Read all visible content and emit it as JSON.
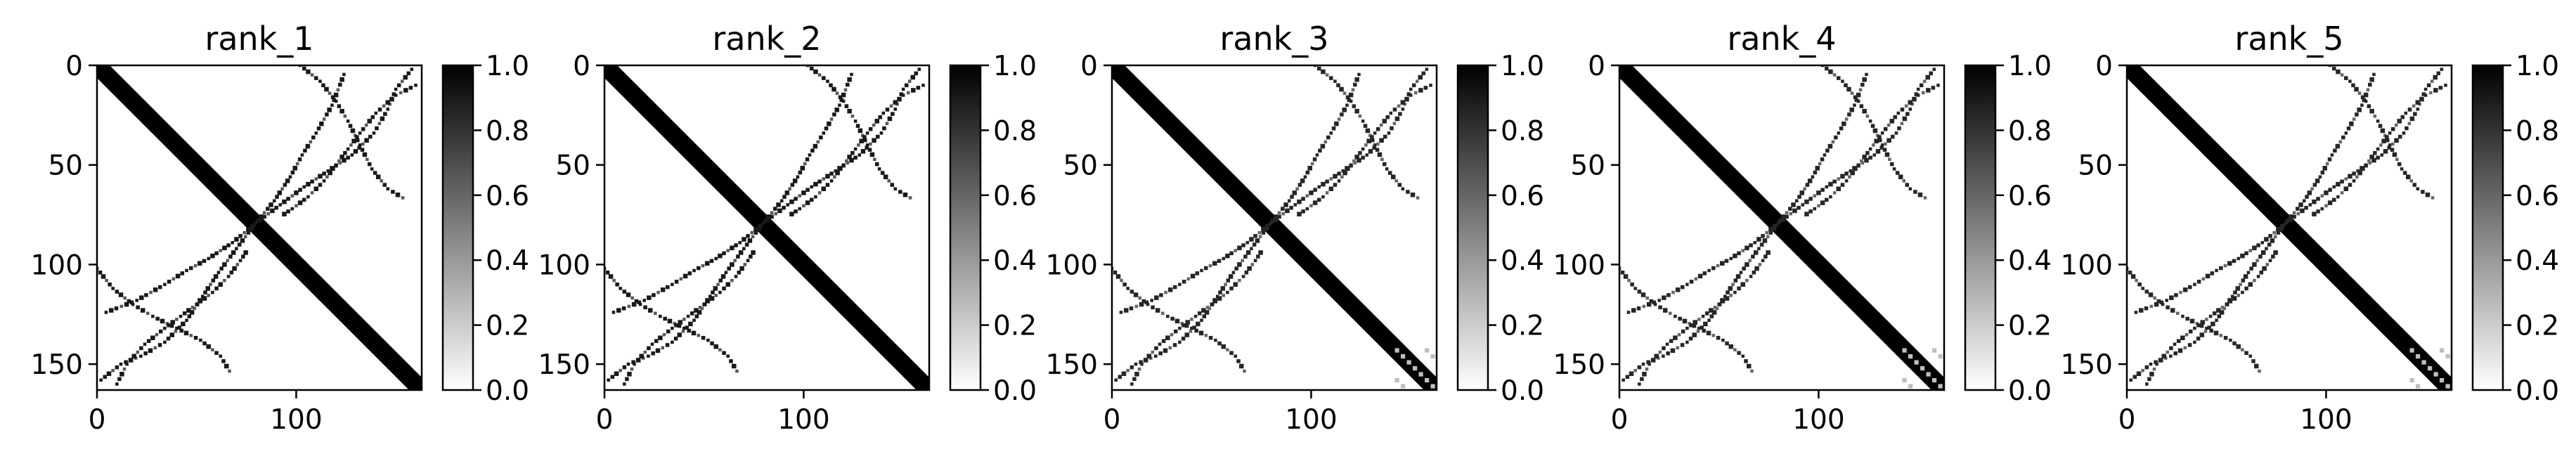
{
  "figure": {
    "background": "#ffffff"
  },
  "colormap": {
    "low": "#ffffff",
    "high": "#000000"
  },
  "chart_data": [
    {
      "type": "heatmap",
      "title": "rank_1",
      "x_ticks": [
        "0",
        "100"
      ],
      "y_ticks": [
        "0",
        "50",
        "100",
        "150"
      ],
      "colorbar_ticks": [
        "0.0",
        "0.2",
        "0.4",
        "0.6",
        "0.8",
        "1.0"
      ],
      "value_range": [
        0,
        1
      ],
      "matrix_size": 163,
      "xlim": [
        0,
        163
      ],
      "ylim": [
        163,
        0
      ],
      "features": [
        {
          "kind": "diagonal",
          "value": 1.0
        },
        {
          "kind": "contact_band",
          "points": [
            [
              102,
              0
            ],
            [
              112,
              8
            ],
            [
              120,
              18
            ],
            [
              126,
              28
            ],
            [
              132,
              40
            ],
            [
              138,
              52
            ],
            [
              146,
              62
            ],
            [
              156,
              68
            ]
          ],
          "value": 0.9
        },
        {
          "kind": "contact_band",
          "points": [
            [
              158,
              2
            ],
            [
              150,
              12
            ],
            [
              146,
              22
            ],
            [
              139,
              34
            ],
            [
              128,
              45
            ],
            [
              116,
              53
            ],
            [
              104,
              61
            ],
            [
              92,
              70
            ],
            [
              80,
              79
            ],
            [
              68,
              89
            ],
            [
              56,
              97
            ],
            [
              45,
              103
            ],
            [
              34,
              110
            ],
            [
              20,
              118
            ],
            [
              2,
              125
            ]
          ],
          "value": 0.9
        },
        {
          "kind": "contact_band",
          "points": [
            [
              10,
              160
            ],
            [
              15,
              150
            ],
            [
              24,
              140
            ],
            [
              34,
              132
            ],
            [
              42,
              126
            ],
            [
              50,
              120
            ],
            [
              58,
              114
            ],
            [
              66,
              106
            ],
            [
              72,
              98
            ],
            [
              76,
              92
            ]
          ],
          "value": 0.9
        }
      ]
    },
    {
      "type": "heatmap",
      "title": "rank_2",
      "x_ticks": [
        "0",
        "100"
      ],
      "y_ticks": [
        "0",
        "50",
        "100",
        "150"
      ],
      "colorbar_ticks": [
        "0.0",
        "0.2",
        "0.4",
        "0.6",
        "0.8",
        "1.0"
      ],
      "value_range": [
        0,
        1
      ],
      "matrix_size": 163,
      "xlim": [
        0,
        163
      ],
      "ylim": [
        163,
        0
      ],
      "features": [
        {
          "kind": "diagonal",
          "value": 1.0
        },
        {
          "kind": "contact_band",
          "points": [
            [
              102,
              0
            ],
            [
              112,
              8
            ],
            [
              120,
              18
            ],
            [
              126,
              28
            ],
            [
              132,
              40
            ],
            [
              138,
              52
            ],
            [
              146,
              62
            ],
            [
              156,
              68
            ]
          ],
          "value": 0.9
        },
        {
          "kind": "contact_band",
          "points": [
            [
              158,
              2
            ],
            [
              150,
              12
            ],
            [
              146,
              22
            ],
            [
              139,
              34
            ],
            [
              128,
              45
            ],
            [
              116,
              53
            ],
            [
              104,
              61
            ],
            [
              92,
              70
            ],
            [
              80,
              79
            ],
            [
              68,
              89
            ],
            [
              56,
              97
            ],
            [
              45,
              103
            ],
            [
              34,
              110
            ],
            [
              20,
              118
            ],
            [
              2,
              125
            ]
          ],
          "value": 0.9
        },
        {
          "kind": "contact_band",
          "points": [
            [
              10,
              160
            ],
            [
              15,
              150
            ],
            [
              24,
              140
            ],
            [
              34,
              132
            ],
            [
              42,
              126
            ],
            [
              50,
              120
            ],
            [
              58,
              114
            ],
            [
              66,
              106
            ],
            [
              72,
              98
            ],
            [
              76,
              92
            ]
          ],
          "value": 0.9
        }
      ]
    },
    {
      "type": "heatmap",
      "title": "rank_3",
      "x_ticks": [
        "0",
        "100"
      ],
      "y_ticks": [
        "0",
        "50",
        "100",
        "150"
      ],
      "colorbar_ticks": [
        "0.0",
        "0.2",
        "0.4",
        "0.6",
        "0.8",
        "1.0"
      ],
      "value_range": [
        0,
        1
      ],
      "matrix_size": 163,
      "xlim": [
        0,
        163
      ],
      "ylim": [
        163,
        0
      ],
      "features": [
        {
          "kind": "diagonal",
          "value": 1.0
        },
        {
          "kind": "contact_band",
          "points": [
            [
              102,
              0
            ],
            [
              112,
              8
            ],
            [
              120,
              18
            ],
            [
              126,
              28
            ],
            [
              132,
              40
            ],
            [
              138,
              52
            ],
            [
              146,
              62
            ],
            [
              156,
              68
            ]
          ],
          "value": 0.85
        },
        {
          "kind": "contact_band",
          "points": [
            [
              158,
              2
            ],
            [
              150,
              12
            ],
            [
              146,
              22
            ],
            [
              139,
              34
            ],
            [
              128,
              45
            ],
            [
              116,
              53
            ],
            [
              104,
              61
            ],
            [
              92,
              70
            ],
            [
              80,
              79
            ],
            [
              68,
              89
            ],
            [
              56,
              97
            ],
            [
              45,
              103
            ],
            [
              34,
              110
            ],
            [
              20,
              118
            ],
            [
              2,
              125
            ]
          ],
          "value": 0.85
        },
        {
          "kind": "contact_band",
          "points": [
            [
              10,
              160
            ],
            [
              15,
              150
            ],
            [
              24,
              140
            ],
            [
              34,
              132
            ],
            [
              42,
              126
            ],
            [
              50,
              120
            ],
            [
              58,
              114
            ],
            [
              66,
              106
            ],
            [
              72,
              98
            ],
            [
              76,
              92
            ]
          ],
          "value": 0.85
        },
        {
          "kind": "corner_block",
          "range": [
            142,
            163
          ],
          "value": 0.25
        }
      ]
    },
    {
      "type": "heatmap",
      "title": "rank_4",
      "x_ticks": [
        "0",
        "100"
      ],
      "y_ticks": [
        "0",
        "50",
        "100",
        "150"
      ],
      "colorbar_ticks": [
        "0.0",
        "0.2",
        "0.4",
        "0.6",
        "0.8",
        "1.0"
      ],
      "value_range": [
        0,
        1
      ],
      "matrix_size": 163,
      "xlim": [
        0,
        163
      ],
      "ylim": [
        163,
        0
      ],
      "features": [
        {
          "kind": "diagonal",
          "value": 1.0
        },
        {
          "kind": "contact_band",
          "points": [
            [
              102,
              0
            ],
            [
              112,
              8
            ],
            [
              120,
              18
            ],
            [
              126,
              28
            ],
            [
              132,
              40
            ],
            [
              138,
              52
            ],
            [
              146,
              62
            ],
            [
              156,
              68
            ]
          ],
          "value": 0.85
        },
        {
          "kind": "contact_band",
          "points": [
            [
              158,
              2
            ],
            [
              150,
              12
            ],
            [
              146,
              22
            ],
            [
              139,
              34
            ],
            [
              128,
              45
            ],
            [
              116,
              53
            ],
            [
              104,
              61
            ],
            [
              92,
              70
            ],
            [
              80,
              79
            ],
            [
              68,
              89
            ],
            [
              56,
              97
            ],
            [
              45,
              103
            ],
            [
              34,
              110
            ],
            [
              20,
              118
            ],
            [
              2,
              125
            ]
          ],
          "value": 0.85
        },
        {
          "kind": "contact_band",
          "points": [
            [
              10,
              160
            ],
            [
              15,
              150
            ],
            [
              24,
              140
            ],
            [
              34,
              132
            ],
            [
              42,
              126
            ],
            [
              50,
              120
            ],
            [
              58,
              114
            ],
            [
              66,
              106
            ],
            [
              72,
              98
            ],
            [
              76,
              92
            ]
          ],
          "value": 0.85
        },
        {
          "kind": "corner_block",
          "range": [
            142,
            163
          ],
          "value": 0.25
        }
      ]
    },
    {
      "type": "heatmap",
      "title": "rank_5",
      "x_ticks": [
        "0",
        "100"
      ],
      "y_ticks": [
        "0",
        "50",
        "100",
        "150"
      ],
      "colorbar_ticks": [
        "0.0",
        "0.2",
        "0.4",
        "0.6",
        "0.8",
        "1.0"
      ],
      "value_range": [
        0,
        1
      ],
      "matrix_size": 163,
      "xlim": [
        0,
        163
      ],
      "ylim": [
        163,
        0
      ],
      "features": [
        {
          "kind": "diagonal",
          "value": 1.0
        },
        {
          "kind": "contact_band",
          "points": [
            [
              102,
              0
            ],
            [
              112,
              8
            ],
            [
              120,
              18
            ],
            [
              126,
              28
            ],
            [
              132,
              40
            ],
            [
              138,
              52
            ],
            [
              146,
              62
            ],
            [
              156,
              68
            ]
          ],
          "value": 0.85
        },
        {
          "kind": "contact_band",
          "points": [
            [
              158,
              2
            ],
            [
              150,
              12
            ],
            [
              146,
              22
            ],
            [
              139,
              34
            ],
            [
              128,
              45
            ],
            [
              116,
              53
            ],
            [
              104,
              61
            ],
            [
              92,
              70
            ],
            [
              80,
              79
            ],
            [
              68,
              89
            ],
            [
              56,
              97
            ],
            [
              45,
              103
            ],
            [
              34,
              110
            ],
            [
              20,
              118
            ],
            [
              2,
              125
            ]
          ],
          "value": 0.85
        },
        {
          "kind": "contact_band",
          "points": [
            [
              10,
              160
            ],
            [
              15,
              150
            ],
            [
              24,
              140
            ],
            [
              34,
              132
            ],
            [
              42,
              126
            ],
            [
              50,
              120
            ],
            [
              58,
              114
            ],
            [
              66,
              106
            ],
            [
              72,
              98
            ],
            [
              76,
              92
            ]
          ],
          "value": 0.85
        },
        {
          "kind": "corner_block",
          "range": [
            142,
            163
          ],
          "value": 0.25
        }
      ]
    }
  ]
}
